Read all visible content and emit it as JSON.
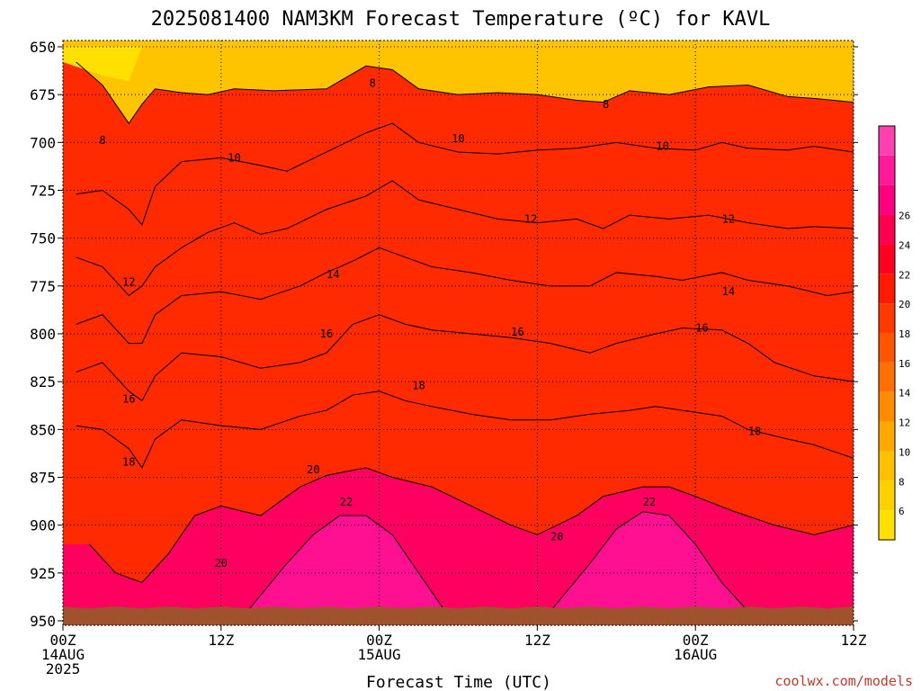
{
  "chart_data": {
    "type": "heatmap",
    "title": "2025081400 NAM3KM Forecast Temperature (ºC) for KAVL",
    "xlabel": "Forecast Time (UTC)",
    "credit": "coolwx.com/models",
    "y_ticks": [
      "650",
      "675",
      "700",
      "725",
      "750",
      "775",
      "800",
      "825",
      "850",
      "875",
      "900",
      "925",
      "950"
    ],
    "ylim": [
      650,
      950
    ],
    "x_ticks": [
      {
        "hour": 0,
        "lines": [
          "00Z",
          "14AUG",
          "2025"
        ]
      },
      {
        "hour": 12,
        "lines": [
          "12Z"
        ]
      },
      {
        "hour": 24,
        "lines": [
          "00Z",
          "15AUG"
        ]
      },
      {
        "hour": 36,
        "lines": [
          "12Z"
        ]
      },
      {
        "hour": 48,
        "lines": [
          "00Z",
          "16AUG"
        ]
      },
      {
        "hour": 60,
        "lines": [
          "12Z"
        ]
      }
    ],
    "xlim": [
      0,
      60
    ],
    "grid": true,
    "colorbar": {
      "labels": [
        "6",
        "8",
        "10",
        "12",
        "14",
        "16",
        "18",
        "20",
        "22",
        "24",
        "26"
      ],
      "colors": [
        "#ffe000",
        "#ffd000",
        "#ffc000",
        "#ffa800",
        "#ff8c00",
        "#ff7000",
        "#ff5500",
        "#ff3a00",
        "#ff1a00",
        "#ff0020",
        "#ff0050",
        "#ff0080",
        "#ff1a9a",
        "#ff40b0"
      ]
    },
    "contours": [
      {
        "label": "8",
        "points": [
          [
            1,
            658
          ],
          [
            3,
            670
          ],
          [
            5,
            690
          ],
          [
            6,
            680
          ],
          [
            7,
            672
          ],
          [
            9,
            674
          ],
          [
            11,
            675
          ],
          [
            13,
            672
          ],
          [
            16,
            673
          ],
          [
            20,
            672
          ],
          [
            23,
            660
          ],
          [
            25,
            662
          ],
          [
            27,
            672
          ],
          [
            30,
            675
          ],
          [
            33,
            674
          ],
          [
            36,
            675
          ],
          [
            39,
            678
          ],
          [
            41,
            679
          ],
          [
            43,
            673
          ],
          [
            46,
            675
          ],
          [
            49,
            671
          ],
          [
            52,
            670
          ],
          [
            55,
            676
          ],
          [
            57,
            677
          ],
          [
            60,
            679
          ]
        ]
      },
      {
        "label": "10",
        "points": [
          [
            1,
            727
          ],
          [
            3,
            725
          ],
          [
            5,
            735
          ],
          [
            6,
            743
          ],
          [
            7,
            723
          ],
          [
            9,
            710
          ],
          [
            12,
            708
          ],
          [
            15,
            712
          ],
          [
            17,
            715
          ],
          [
            20,
            705
          ],
          [
            23,
            695
          ],
          [
            25,
            690
          ],
          [
            27,
            700
          ],
          [
            30,
            705
          ],
          [
            33,
            706
          ],
          [
            36,
            704
          ],
          [
            39,
            703
          ],
          [
            42,
            700
          ],
          [
            45,
            703
          ],
          [
            48,
            704
          ],
          [
            50,
            700
          ],
          [
            52,
            703
          ],
          [
            55,
            704
          ],
          [
            57,
            702
          ],
          [
            60,
            705
          ]
        ]
      },
      {
        "label": "12",
        "points": [
          [
            1,
            760
          ],
          [
            3,
            765
          ],
          [
            5,
            780
          ],
          [
            6,
            775
          ],
          [
            7,
            765
          ],
          [
            9,
            755
          ],
          [
            11,
            747
          ],
          [
            13,
            742
          ],
          [
            15,
            748
          ],
          [
            17,
            745
          ],
          [
            20,
            735
          ],
          [
            23,
            728
          ],
          [
            25,
            720
          ],
          [
            27,
            730
          ],
          [
            30,
            735
          ],
          [
            33,
            740
          ],
          [
            36,
            742
          ],
          [
            39,
            740
          ],
          [
            41,
            745
          ],
          [
            43,
            738
          ],
          [
            46,
            740
          ],
          [
            49,
            738
          ],
          [
            52,
            742
          ],
          [
            55,
            745
          ],
          [
            57,
            744
          ],
          [
            60,
            745
          ]
        ]
      },
      {
        "label": "14",
        "points": [
          [
            1,
            795
          ],
          [
            3,
            790
          ],
          [
            5,
            805
          ],
          [
            6,
            805
          ],
          [
            7,
            790
          ],
          [
            9,
            780
          ],
          [
            12,
            778
          ],
          [
            15,
            782
          ],
          [
            18,
            775
          ],
          [
            20,
            768
          ],
          [
            22,
            762
          ],
          [
            24,
            755
          ],
          [
            26,
            760
          ],
          [
            28,
            765
          ],
          [
            31,
            768
          ],
          [
            34,
            772
          ],
          [
            37,
            775
          ],
          [
            40,
            775
          ],
          [
            42,
            768
          ],
          [
            45,
            770
          ],
          [
            47,
            772
          ],
          [
            50,
            768
          ],
          [
            52,
            772
          ],
          [
            55,
            775
          ],
          [
            58,
            780
          ],
          [
            60,
            778
          ]
        ]
      },
      {
        "label": "16",
        "points": [
          [
            1,
            820
          ],
          [
            3,
            815
          ],
          [
            5,
            830
          ],
          [
            6,
            835
          ],
          [
            7,
            822
          ],
          [
            9,
            810
          ],
          [
            12,
            812
          ],
          [
            15,
            818
          ],
          [
            18,
            815
          ],
          [
            20,
            810
          ],
          [
            22,
            795
          ],
          [
            24,
            790
          ],
          [
            26,
            795
          ],
          [
            28,
            798
          ],
          [
            31,
            800
          ],
          [
            34,
            802
          ],
          [
            37,
            805
          ],
          [
            40,
            810
          ],
          [
            42,
            805
          ],
          [
            45,
            800
          ],
          [
            47,
            797
          ],
          [
            50,
            798
          ],
          [
            52,
            805
          ],
          [
            54,
            815
          ],
          [
            57,
            822
          ],
          [
            60,
            825
          ]
        ]
      },
      {
        "label": "18",
        "points": [
          [
            1,
            848
          ],
          [
            3,
            850
          ],
          [
            5,
            860
          ],
          [
            6,
            870
          ],
          [
            7,
            855
          ],
          [
            9,
            845
          ],
          [
            12,
            848
          ],
          [
            15,
            850
          ],
          [
            18,
            843
          ],
          [
            20,
            840
          ],
          [
            22,
            832
          ],
          [
            24,
            830
          ],
          [
            26,
            835
          ],
          [
            28,
            838
          ],
          [
            31,
            842
          ],
          [
            34,
            845
          ],
          [
            37,
            845
          ],
          [
            40,
            842
          ],
          [
            43,
            840
          ],
          [
            45,
            838
          ],
          [
            47,
            840
          ],
          [
            50,
            843
          ],
          [
            52,
            850
          ],
          [
            55,
            855
          ],
          [
            57,
            858
          ],
          [
            60,
            865
          ]
        ]
      },
      {
        "label": "20",
        "points": [
          [
            2,
            910
          ],
          [
            4,
            925
          ],
          [
            6,
            930
          ],
          [
            8,
            915
          ],
          [
            10,
            895
          ],
          [
            12,
            890
          ],
          [
            15,
            895
          ],
          [
            18,
            880
          ],
          [
            20,
            874
          ],
          [
            23,
            870
          ],
          [
            25,
            875
          ],
          [
            28,
            880
          ],
          [
            31,
            890
          ],
          [
            34,
            900
          ],
          [
            36,
            905
          ],
          [
            39,
            895
          ],
          [
            41,
            885
          ],
          [
            44,
            880
          ],
          [
            46,
            880
          ],
          [
            48,
            885
          ],
          [
            51,
            893
          ],
          [
            54,
            900
          ],
          [
            57,
            905
          ],
          [
            60,
            900
          ]
        ]
      },
      {
        "label": "22",
        "points": [
          [
            14,
            945
          ],
          [
            17,
            920
          ],
          [
            19,
            905
          ],
          [
            21,
            895
          ],
          [
            23,
            895
          ],
          [
            25,
            905
          ],
          [
            27,
            925
          ],
          [
            29,
            945
          ]
        ]
      },
      {
        "label": "22",
        "points": [
          [
            37,
            945
          ],
          [
            40,
            920
          ],
          [
            42,
            902
          ],
          [
            44,
            893
          ],
          [
            46,
            895
          ],
          [
            48,
            910
          ],
          [
            50,
            930
          ],
          [
            52,
            945
          ]
        ]
      }
    ],
    "contour_labels": [
      {
        "text": "8",
        "hour": 23.5,
        "level": 669
      },
      {
        "text": "8",
        "hour": 41.2,
        "level": 680
      },
      {
        "text": "8",
        "hour": 3.0,
        "level": 699
      },
      {
        "text": "10",
        "hour": 13.0,
        "level": 708
      },
      {
        "text": "10",
        "hour": 30.0,
        "level": 698
      },
      {
        "text": "10",
        "hour": 45.5,
        "level": 702
      },
      {
        "text": "12",
        "hour": 35.5,
        "level": 740
      },
      {
        "text": "12",
        "hour": 50.5,
        "level": 740
      },
      {
        "text": "12",
        "hour": 5.0,
        "level": 773
      },
      {
        "text": "14",
        "hour": 20.5,
        "level": 769
      },
      {
        "text": "14",
        "hour": 50.5,
        "level": 778
      },
      {
        "text": "16",
        "hour": 20.0,
        "level": 800
      },
      {
        "text": "16",
        "hour": 34.5,
        "level": 799
      },
      {
        "text": "16",
        "hour": 48.5,
        "level": 797
      },
      {
        "text": "16",
        "hour": 5.0,
        "level": 834
      },
      {
        "text": "18",
        "hour": 27.0,
        "level": 827
      },
      {
        "text": "18",
        "hour": 5.0,
        "level": 867
      },
      {
        "text": "18",
        "hour": 52.5,
        "level": 851
      },
      {
        "text": "20",
        "hour": 19.0,
        "level": 871
      },
      {
        "text": "20",
        "hour": 37.5,
        "level": 906
      },
      {
        "text": "20",
        "hour": 12.0,
        "level": 920
      },
      {
        "text": "22",
        "hour": 21.5,
        "level": 888
      },
      {
        "text": "22",
        "hour": 44.5,
        "level": 888
      }
    ],
    "color_regions": [
      {
        "label": "6-8",
        "color": "#ffd000",
        "points": [
          [
            0,
            650
          ],
          [
            6,
            650
          ],
          [
            6,
            660
          ],
          [
            4,
            668
          ],
          [
            2,
            662
          ],
          [
            0,
            660
          ]
        ]
      },
      {
        "label": "8-10",
        "color": "#ffc000",
        "points": [
          [
            0,
            660
          ],
          [
            60,
            660
          ],
          [
            60,
            700
          ],
          [
            0,
            700
          ]
        ]
      }
    ],
    "ground_color": "#a0522d",
    "surface_level": 943
  }
}
